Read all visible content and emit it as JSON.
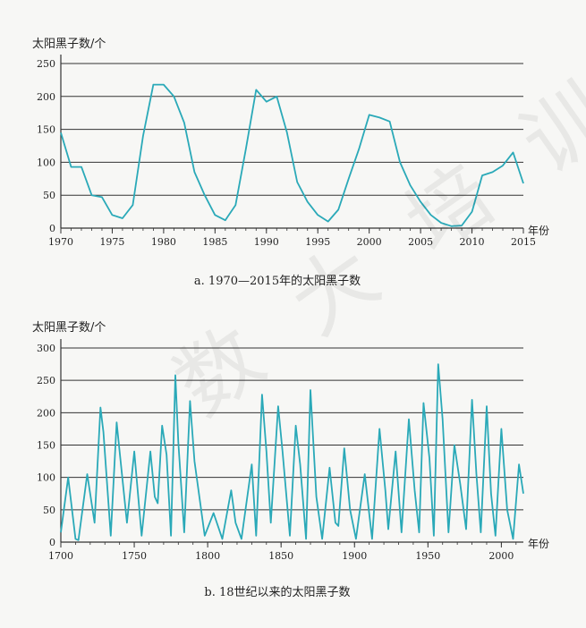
{
  "chart_data": [
    {
      "type": "line",
      "caption": "a. 1970—2015年的太阳黑子数",
      "ylabel": "太阳黑子数/个",
      "xlabel": "年份",
      "xlim": [
        1970,
        2015
      ],
      "ylim": [
        0,
        250
      ],
      "yticks": [
        0,
        50,
        100,
        150,
        200,
        250
      ],
      "xticks": [
        1970,
        1975,
        1980,
        1985,
        1990,
        1995,
        2000,
        2005,
        2010,
        2015
      ],
      "grid": "horizontal",
      "line_color": "#2aa9b8",
      "series": [
        {
          "x": [
            1970,
            1971,
            1972,
            1973,
            1974,
            1975,
            1976,
            1977,
            1978,
            1979,
            1980,
            1981,
            1982,
            1983,
            1984,
            1985,
            1986,
            1987,
            1988,
            1989,
            1990,
            1991,
            1992,
            1993,
            1994,
            1995,
            1996,
            1997,
            1998,
            1999,
            2000,
            2001,
            2002,
            2003,
            2004,
            2005,
            2006,
            2007,
            2008,
            2009,
            2010,
            2011,
            2012,
            2013,
            2014,
            2015
          ],
          "y": [
            145,
            93,
            93,
            50,
            47,
            20,
            15,
            35,
            140,
            218,
            218,
            200,
            160,
            85,
            50,
            20,
            12,
            35,
            120,
            210,
            192,
            200,
            145,
            70,
            40,
            20,
            10,
            28,
            75,
            120,
            172,
            168,
            162,
            100,
            65,
            40,
            20,
            8,
            3,
            4,
            25,
            80,
            85,
            95,
            115,
            68
          ]
        }
      ]
    },
    {
      "type": "line",
      "caption": "b. 18世纪以来的太阳黑子数",
      "ylabel": "太阳黑子数/个",
      "xlabel": "年份",
      "xlim": [
        1700,
        2015
      ],
      "ylim": [
        0,
        300
      ],
      "yticks": [
        0,
        50,
        100,
        150,
        200,
        250,
        300
      ],
      "xticks": [
        1700,
        1750,
        1800,
        1850,
        1900,
        1950,
        2000
      ],
      "grid": "horizontal",
      "line_color": "#2aa9b8",
      "series": [
        {
          "x": [
            1700,
            1705,
            1710,
            1712,
            1718,
            1723,
            1727,
            1729,
            1734,
            1738,
            1740,
            1745,
            1750,
            1755,
            1761,
            1764,
            1766,
            1769,
            1772,
            1775,
            1778,
            1780,
            1784,
            1788,
            1791,
            1798,
            1804,
            1810,
            1816,
            1819,
            1823,
            1830,
            1833,
            1837,
            1840,
            1843,
            1848,
            1851,
            1856,
            1860,
            1863,
            1867,
            1870,
            1874,
            1878,
            1883,
            1887,
            1889,
            1893,
            1897,
            1901,
            1907,
            1912,
            1917,
            1921,
            1923,
            1928,
            1932,
            1937,
            1941,
            1944,
            1947,
            1951,
            1954,
            1957,
            1960,
            1964,
            1968,
            1972,
            1976,
            1980,
            1983,
            1986,
            1990,
            1993,
            1996,
            2000,
            2004,
            2008,
            2012,
            2015
          ],
          "y": [
            15,
            100,
            5,
            3,
            105,
            30,
            208,
            170,
            10,
            185,
            140,
            30,
            140,
            10,
            140,
            70,
            60,
            180,
            135,
            10,
            258,
            155,
            15,
            218,
            125,
            10,
            45,
            5,
            80,
            30,
            5,
            120,
            10,
            228,
            140,
            30,
            210,
            140,
            10,
            180,
            120,
            5,
            235,
            70,
            5,
            115,
            30,
            25,
            145,
            50,
            5,
            105,
            5,
            175,
            80,
            20,
            140,
            15,
            190,
            80,
            15,
            215,
            130,
            10,
            275,
            190,
            15,
            150,
            90,
            20,
            220,
            105,
            15,
            210,
            75,
            10,
            175,
            50,
            5,
            120,
            75
          ]
        }
      ]
    }
  ],
  "watermark": "数 大 培 训 专 用"
}
